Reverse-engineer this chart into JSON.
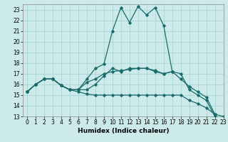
{
  "xlabel": "Humidex (Indice chaleur)",
  "ylabel": "",
  "xlim": [
    -0.5,
    23
  ],
  "ylim": [
    13,
    23.5
  ],
  "xticks": [
    0,
    1,
    2,
    3,
    4,
    5,
    6,
    7,
    8,
    9,
    10,
    11,
    12,
    13,
    14,
    15,
    16,
    17,
    18,
    19,
    20,
    21,
    22,
    23
  ],
  "yticks": [
    13,
    14,
    15,
    16,
    17,
    18,
    19,
    20,
    21,
    22,
    23
  ],
  "bg_color": "#cceaea",
  "grid_color": "#aad4d4",
  "line_color": "#1a6b6b",
  "series": [
    [
      15.3,
      16.0,
      16.5,
      16.5,
      15.9,
      15.5,
      15.3,
      15.1,
      15.0,
      15.0,
      15.0,
      15.0,
      15.0,
      15.0,
      15.0,
      15.0,
      15.0,
      15.0,
      15.0,
      14.5,
      14.2,
      13.8,
      13.2,
      13.0
    ],
    [
      15.3,
      16.0,
      16.5,
      16.5,
      15.9,
      15.5,
      15.5,
      16.2,
      16.5,
      17.0,
      17.2,
      17.3,
      17.4,
      17.5,
      17.5,
      17.3,
      17.0,
      17.2,
      16.5,
      15.8,
      15.3,
      14.8,
      13.2,
      null
    ],
    [
      15.3,
      16.0,
      16.5,
      16.5,
      15.9,
      15.5,
      15.5,
      16.5,
      17.5,
      17.9,
      21.0,
      23.2,
      21.8,
      23.3,
      22.5,
      23.2,
      21.5,
      17.2,
      null,
      null,
      null,
      null,
      null,
      null
    ],
    [
      15.3,
      16.0,
      16.5,
      16.5,
      15.9,
      15.5,
      15.5,
      15.5,
      16.0,
      16.8,
      17.5,
      17.2,
      17.5,
      17.5,
      17.5,
      17.2,
      17.0,
      17.2,
      17.0,
      15.5,
      15.0,
      14.5,
      13.0,
      null
    ]
  ]
}
